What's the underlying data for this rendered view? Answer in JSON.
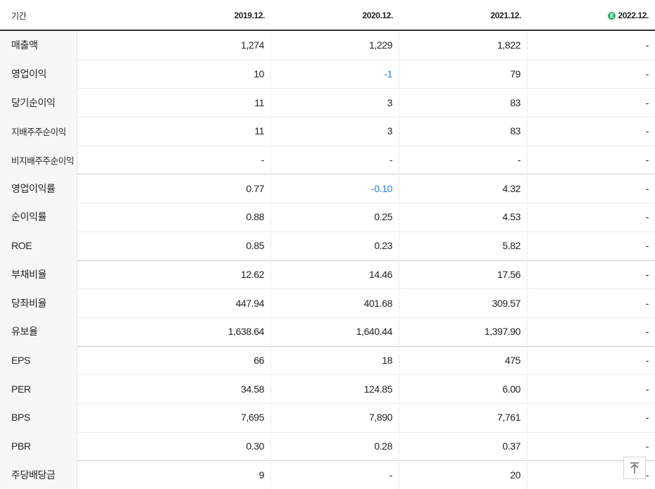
{
  "header": {
    "label": "기간",
    "columns": [
      "2019.12.",
      "2020.12.",
      "2021.12.",
      "2022.12."
    ],
    "estimate_badge": "E"
  },
  "rows": [
    {
      "label": "매출액",
      "values": [
        "1,274",
        "1,229",
        "1,822",
        "-"
      ]
    },
    {
      "label": "영업이익",
      "values": [
        "10",
        "-1",
        "79",
        "-"
      ]
    },
    {
      "label": "당기순이익",
      "values": [
        "11",
        "3",
        "83",
        "-"
      ]
    },
    {
      "label": "지배주주순이익",
      "values": [
        "11",
        "3",
        "83",
        "-"
      ]
    },
    {
      "label": "비지배주주순이익",
      "values": [
        "-",
        "-",
        "-",
        "-"
      ]
    },
    {
      "label": "영업이익률",
      "values": [
        "0.77",
        "-0.10",
        "4.32",
        "-"
      ]
    },
    {
      "label": "순이익률",
      "values": [
        "0.88",
        "0.25",
        "4.53",
        "-"
      ]
    },
    {
      "label": "ROE",
      "values": [
        "0.85",
        "0.23",
        "5.82",
        "-"
      ]
    },
    {
      "label": "부채비율",
      "values": [
        "12.62",
        "14.46",
        "17.56",
        "-"
      ]
    },
    {
      "label": "당좌비율",
      "values": [
        "447.94",
        "401.68",
        "309.57",
        "-"
      ]
    },
    {
      "label": "유보율",
      "values": [
        "1,638.64",
        "1,640.44",
        "1,397.90",
        "-"
      ]
    },
    {
      "label": "EPS",
      "values": [
        "66",
        "18",
        "475",
        "-"
      ]
    },
    {
      "label": "PER",
      "values": [
        "34.58",
        "124.85",
        "6.00",
        "-"
      ]
    },
    {
      "label": "BPS",
      "values": [
        "7,695",
        "7,890",
        "7,761",
        "-"
      ]
    },
    {
      "label": "PBR",
      "values": [
        "0.30",
        "0.28",
        "0.37",
        "-"
      ]
    },
    {
      "label": "주당배당금",
      "values": [
        "9",
        "-",
        "20",
        "-"
      ]
    }
  ]
}
